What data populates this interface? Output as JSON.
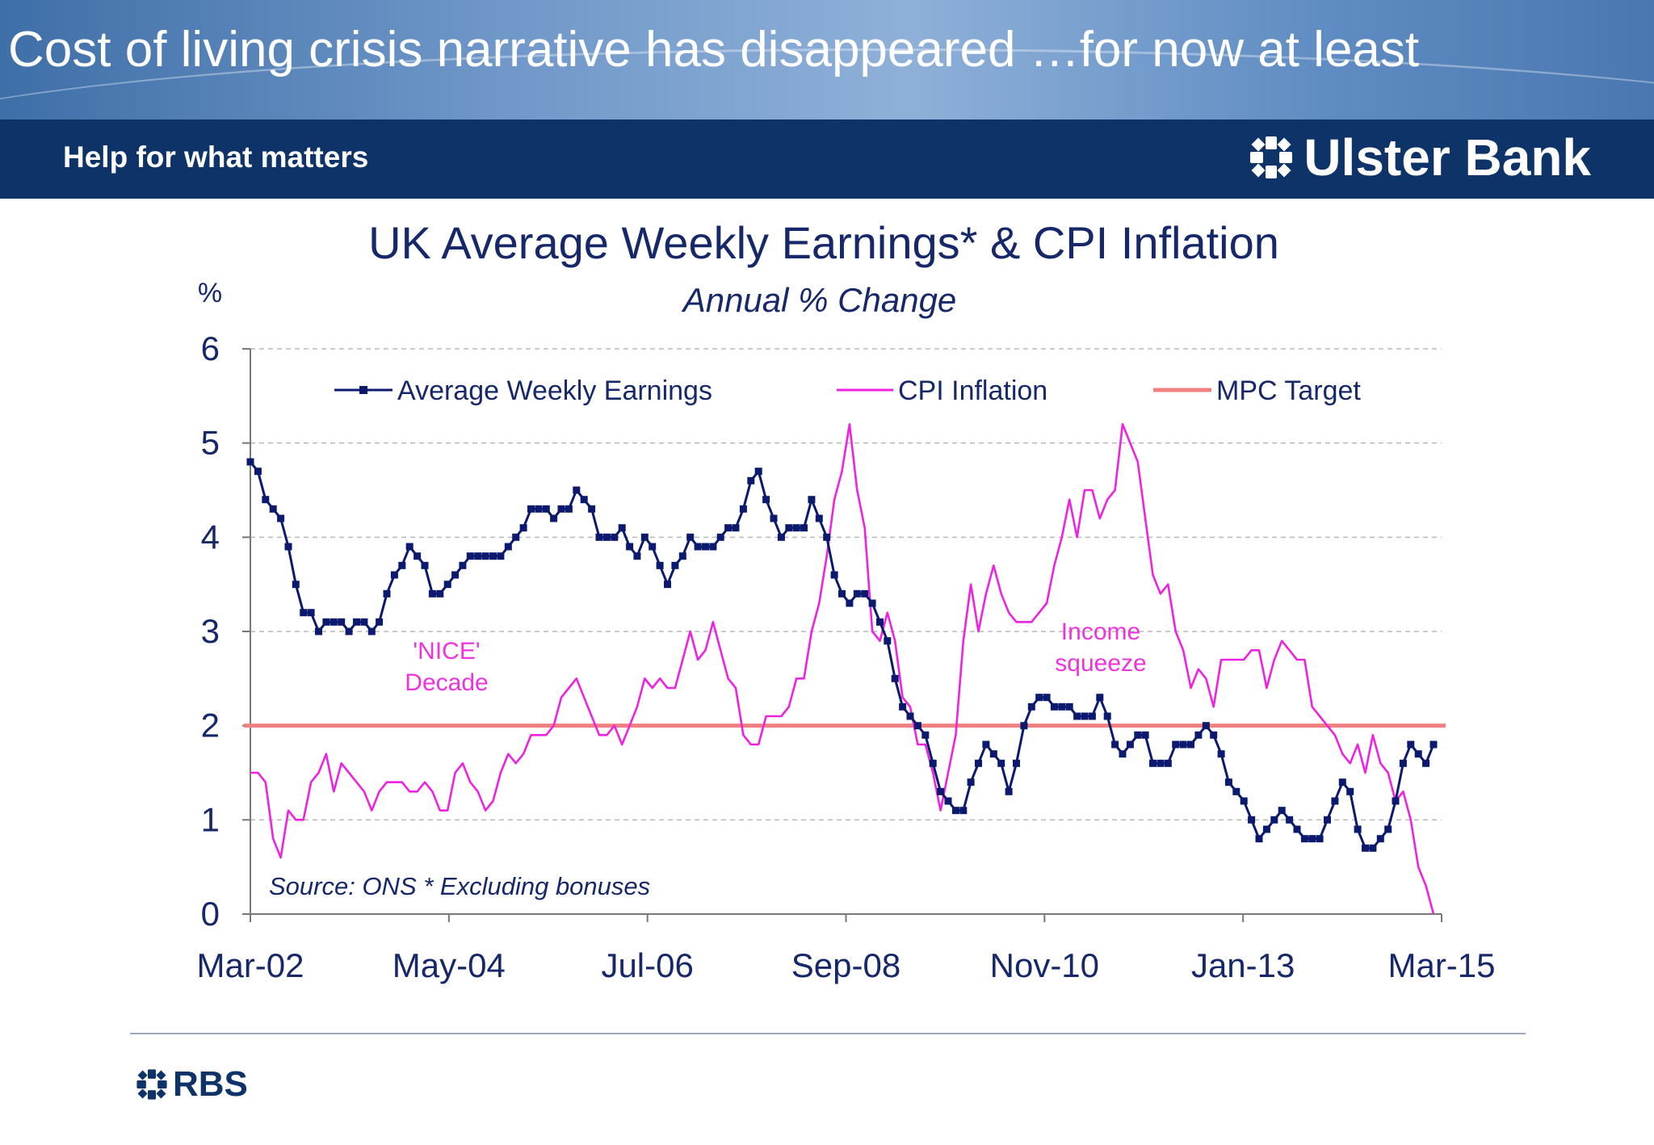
{
  "slide": {
    "title": "Cost of living crisis narrative has disappeared …for now at least"
  },
  "brand": {
    "tagline": "Help for what matters",
    "bank_name": "Ulster Bank",
    "logo_icon": "daisy-cross-icon",
    "footer_logo_text": "RBS",
    "band_color": "#0e3369"
  },
  "chart_data": {
    "type": "line",
    "title": "UK Average Weekly Earnings* & CPI Inflation",
    "subtitle": "Annual % Change",
    "ylabel": "%",
    "xlabel": "",
    "ylim": [
      0,
      6
    ],
    "yticks": [
      "0",
      "1",
      "2",
      "3",
      "4",
      "5",
      "6"
    ],
    "xticks": [
      "Mar-02",
      "May-04",
      "Jul-06",
      "Sep-08",
      "Nov-10",
      "Jan-13",
      "Mar-15"
    ],
    "x_start": "Mar-02",
    "x_end": "Mar-15",
    "grid": true,
    "legend_position": "top",
    "source_note": "Source: ONS * Excluding bonuses",
    "annotations": [
      {
        "lines": [
          "'NICE'",
          "Decade"
        ],
        "color": "#ee33dd"
      },
      {
        "lines": [
          "Income",
          "squeeze"
        ],
        "color": "#ee33dd"
      }
    ],
    "series": [
      {
        "name": "Average Weekly Earnings",
        "color": "#0b1a6e",
        "marker": "square",
        "values": [
          4.8,
          4.7,
          4.4,
          4.3,
          4.2,
          3.9,
          3.5,
          3.2,
          3.2,
          3.0,
          3.1,
          3.1,
          3.1,
          3.0,
          3.1,
          3.1,
          3.0,
          3.1,
          3.4,
          3.6,
          3.7,
          3.9,
          3.8,
          3.7,
          3.4,
          3.4,
          3.5,
          3.6,
          3.7,
          3.8,
          3.8,
          3.8,
          3.8,
          3.8,
          3.9,
          4.0,
          4.1,
          4.3,
          4.3,
          4.3,
          4.2,
          4.3,
          4.3,
          4.5,
          4.4,
          4.3,
          4.0,
          4.0,
          4.0,
          4.1,
          3.9,
          3.8,
          4.0,
          3.9,
          3.7,
          3.5,
          3.7,
          3.8,
          4.0,
          3.9,
          3.9,
          3.9,
          4.0,
          4.1,
          4.1,
          4.3,
          4.6,
          4.7,
          4.4,
          4.2,
          4.0,
          4.1,
          4.1,
          4.1,
          4.4,
          4.2,
          4.0,
          3.6,
          3.4,
          3.3,
          3.4,
          3.4,
          3.3,
          3.1,
          2.9,
          2.5,
          2.2,
          2.1,
          2.0,
          1.9,
          1.6,
          1.3,
          1.2,
          1.1,
          1.1,
          1.4,
          1.6,
          1.8,
          1.7,
          1.6,
          1.3,
          1.6,
          2.0,
          2.2,
          2.3,
          2.3,
          2.2,
          2.2,
          2.2,
          2.1,
          2.1,
          2.1,
          2.3,
          2.1,
          1.8,
          1.7,
          1.8,
          1.9,
          1.9,
          1.6,
          1.6,
          1.6,
          1.8,
          1.8,
          1.8,
          1.9,
          2.0,
          1.9,
          1.7,
          1.4,
          1.3,
          1.2,
          1.0,
          0.8,
          0.9,
          1.0,
          1.1,
          1.0,
          0.9,
          0.8,
          0.8,
          0.8,
          1.0,
          1.2,
          1.4,
          1.3,
          0.9,
          0.7,
          0.7,
          0.8,
          0.9,
          1.2,
          1.6,
          1.8,
          1.7,
          1.6,
          1.8
        ]
      },
      {
        "name": "CPI Inflation",
        "color": "#ee22e0",
        "marker": "none",
        "values": [
          1.5,
          1.5,
          1.4,
          0.8,
          0.6,
          1.1,
          1.0,
          1.0,
          1.4,
          1.5,
          1.7,
          1.3,
          1.6,
          1.5,
          1.4,
          1.3,
          1.1,
          1.3,
          1.4,
          1.4,
          1.4,
          1.3,
          1.3,
          1.4,
          1.3,
          1.1,
          1.1,
          1.5,
          1.6,
          1.4,
          1.3,
          1.1,
          1.2,
          1.5,
          1.7,
          1.6,
          1.7,
          1.9,
          1.9,
          1.9,
          2.0,
          2.3,
          2.4,
          2.5,
          2.3,
          2.1,
          1.9,
          1.9,
          2.0,
          1.8,
          2.0,
          2.2,
          2.5,
          2.4,
          2.5,
          2.4,
          2.4,
          2.7,
          3.0,
          2.7,
          2.8,
          3.1,
          2.8,
          2.5,
          2.4,
          1.9,
          1.8,
          1.8,
          2.1,
          2.1,
          2.1,
          2.2,
          2.5,
          2.5,
          3.0,
          3.3,
          3.8,
          4.4,
          4.7,
          5.2,
          4.5,
          4.1,
          3.0,
          2.9,
          3.2,
          2.9,
          2.3,
          2.2,
          1.8,
          1.8,
          1.5,
          1.1,
          1.5,
          1.9,
          2.9,
          3.5,
          3.0,
          3.4,
          3.7,
          3.4,
          3.2,
          3.1,
          3.1,
          3.1,
          3.2,
          3.3,
          3.7,
          4.0,
          4.4,
          4.0,
          4.5,
          4.5,
          4.2,
          4.4,
          4.5,
          5.2,
          5.0,
          4.8,
          4.2,
          3.6,
          3.4,
          3.5,
          3.0,
          2.8,
          2.4,
          2.6,
          2.5,
          2.2,
          2.7,
          2.7,
          2.7,
          2.7,
          2.8,
          2.8,
          2.4,
          2.7,
          2.9,
          2.8,
          2.7,
          2.7,
          2.2,
          2.1,
          2.0,
          1.9,
          1.7,
          1.6,
          1.8,
          1.5,
          1.9,
          1.6,
          1.5,
          1.2,
          1.3,
          1.0,
          0.5,
          0.3,
          0.0
        ]
      },
      {
        "name": "MPC Target",
        "color": "#f08080",
        "marker": "none",
        "values": [
          2.0,
          2.0
        ]
      }
    ]
  }
}
